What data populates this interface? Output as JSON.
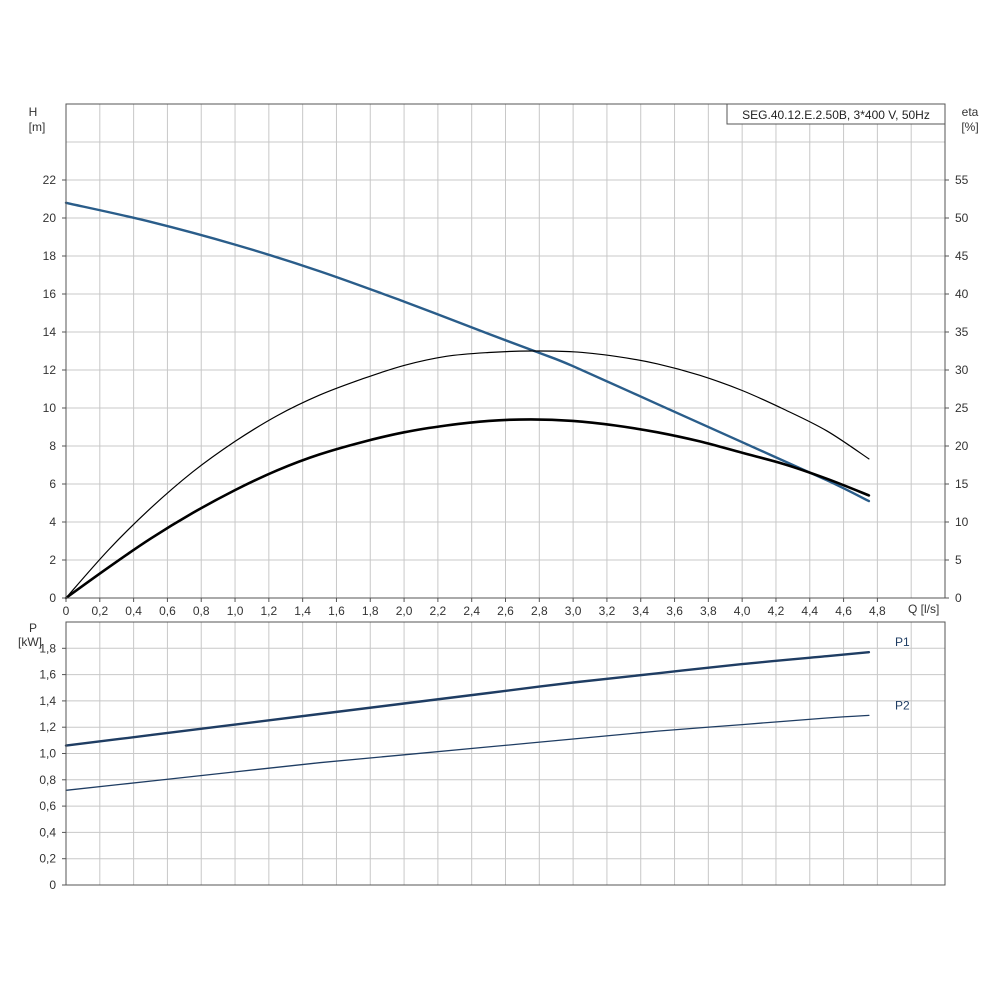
{
  "colors": {
    "grid": "#c8c8c8",
    "axis": "#555555",
    "head_curve": "#2a5d8a",
    "efficiency_curve": "#000000",
    "power_curve": "#1f3d63"
  },
  "chart_data": [
    {
      "type": "line",
      "model_label": "SEG.40.12.E.2.50B, 3*400 V, 50Hz",
      "xlabel": "Q [l/s]",
      "ylabel_left": "H",
      "ylabel_left_unit": "[m]",
      "ylabel_right": "eta",
      "ylabel_right_unit": "[%]",
      "xlim": [
        0,
        5.2
      ],
      "ylim_left": [
        0,
        26
      ],
      "ylim_right": [
        0,
        65
      ],
      "x_ticks": [
        {
          "v": 0,
          "label": "0"
        },
        {
          "v": 0.2,
          "label": "0,2"
        },
        {
          "v": 0.4,
          "label": "0,4"
        },
        {
          "v": 0.6,
          "label": "0,6"
        },
        {
          "v": 0.8,
          "label": "0,8"
        },
        {
          "v": 1.0,
          "label": "1,0"
        },
        {
          "v": 1.2,
          "label": "1,2"
        },
        {
          "v": 1.4,
          "label": "1,4"
        },
        {
          "v": 1.6,
          "label": "1,6"
        },
        {
          "v": 1.8,
          "label": "1,8"
        },
        {
          "v": 2.0,
          "label": "2,0"
        },
        {
          "v": 2.2,
          "label": "2,2"
        },
        {
          "v": 2.4,
          "label": "2,4"
        },
        {
          "v": 2.6,
          "label": "2,6"
        },
        {
          "v": 2.8,
          "label": "2,8"
        },
        {
          "v": 3.0,
          "label": "3,0"
        },
        {
          "v": 3.2,
          "label": "3,2"
        },
        {
          "v": 3.4,
          "label": "3,4"
        },
        {
          "v": 3.6,
          "label": "3,6"
        },
        {
          "v": 3.8,
          "label": "3,8"
        },
        {
          "v": 4.0,
          "label": "4,0"
        },
        {
          "v": 4.2,
          "label": "4,2"
        },
        {
          "v": 4.4,
          "label": "4,4"
        },
        {
          "v": 4.6,
          "label": "4,6"
        },
        {
          "v": 4.8,
          "label": "4,8"
        }
      ],
      "y_ticks_left": [
        {
          "v": 0,
          "label": "0"
        },
        {
          "v": 2,
          "label": "2"
        },
        {
          "v": 4,
          "label": "4"
        },
        {
          "v": 6,
          "label": "6"
        },
        {
          "v": 8,
          "label": "8"
        },
        {
          "v": 10,
          "label": "10"
        },
        {
          "v": 12,
          "label": "12"
        },
        {
          "v": 14,
          "label": "14"
        },
        {
          "v": 16,
          "label": "16"
        },
        {
          "v": 18,
          "label": "18"
        },
        {
          "v": 20,
          "label": "20"
        },
        {
          "v": 22,
          "label": "22"
        }
      ],
      "y_ticks_right": [
        {
          "v": 0,
          "label": "0"
        },
        {
          "v": 5,
          "label": "5"
        },
        {
          "v": 10,
          "label": "10"
        },
        {
          "v": 15,
          "label": "15"
        },
        {
          "v": 20,
          "label": "20"
        },
        {
          "v": 25,
          "label": "25"
        },
        {
          "v": 30,
          "label": "30"
        },
        {
          "v": 35,
          "label": "35"
        },
        {
          "v": 40,
          "label": "40"
        },
        {
          "v": 45,
          "label": "45"
        },
        {
          "v": 50,
          "label": "50"
        },
        {
          "v": 55,
          "label": "55"
        }
      ],
      "grid": true,
      "series": [
        {
          "axis": "left",
          "style": "head",
          "x": [
            0,
            0.5,
            1.0,
            1.5,
            2.0,
            2.5,
            2.8,
            3.0,
            3.5,
            4.0,
            4.5,
            4.75
          ],
          "y": [
            20.8,
            19.8,
            18.6,
            17.2,
            15.6,
            13.9,
            12.9,
            12.2,
            10.2,
            8.2,
            6.2,
            5.1
          ]
        },
        {
          "axis": "right",
          "style": "eta-thin",
          "x": [
            0,
            0.25,
            0.5,
            0.75,
            1.0,
            1.25,
            1.5,
            1.75,
            2.0,
            2.25,
            2.5,
            2.75,
            3.0,
            3.25,
            3.5,
            3.75,
            4.0,
            4.25,
            4.5,
            4.75
          ],
          "y": [
            0,
            6.3,
            11.8,
            16.6,
            20.6,
            24.0,
            26.7,
            28.8,
            30.6,
            31.8,
            32.3,
            32.5,
            32.4,
            31.8,
            30.8,
            29.3,
            27.3,
            24.8,
            22.0,
            18.3
          ]
        },
        {
          "axis": "right",
          "style": "eta-thick",
          "x": [
            0,
            0.25,
            0.5,
            0.75,
            1.0,
            1.25,
            1.5,
            1.75,
            2.0,
            2.25,
            2.5,
            2.75,
            3.0,
            3.25,
            3.5,
            3.75,
            4.0,
            4.25,
            4.5,
            4.75
          ],
          "y": [
            0,
            4.0,
            7.8,
            11.2,
            14.2,
            16.8,
            18.9,
            20.5,
            21.8,
            22.7,
            23.3,
            23.5,
            23.3,
            22.7,
            21.8,
            20.6,
            19.1,
            17.6,
            15.7,
            13.5
          ]
        }
      ]
    },
    {
      "type": "line",
      "ylabel": "P",
      "ylabel_unit": "[kW]",
      "xlim": [
        0,
        5.2
      ],
      "ylim": [
        0,
        2.0
      ],
      "y_ticks": [
        {
          "v": 0,
          "label": "0"
        },
        {
          "v": 0.2,
          "label": "0,2"
        },
        {
          "v": 0.4,
          "label": "0,4"
        },
        {
          "v": 0.6,
          "label": "0,6"
        },
        {
          "v": 0.8,
          "label": "0,8"
        },
        {
          "v": 1.0,
          "label": "1,0"
        },
        {
          "v": 1.2,
          "label": "1,2"
        },
        {
          "v": 1.4,
          "label": "1,4"
        },
        {
          "v": 1.6,
          "label": "1,6"
        },
        {
          "v": 1.8,
          "label": "1,8"
        }
      ],
      "grid": true,
      "series": [
        {
          "name": "P1",
          "style": "thick",
          "x": [
            0,
            0.5,
            1.0,
            1.5,
            2.0,
            2.5,
            3.0,
            3.5,
            4.0,
            4.5,
            4.75
          ],
          "y": [
            1.06,
            1.14,
            1.22,
            1.3,
            1.38,
            1.46,
            1.54,
            1.61,
            1.68,
            1.74,
            1.77
          ]
        },
        {
          "name": "P2",
          "style": "thin",
          "x": [
            0,
            0.5,
            1.0,
            1.5,
            2.0,
            2.5,
            3.0,
            3.5,
            4.0,
            4.5,
            4.75
          ],
          "y": [
            0.72,
            0.79,
            0.86,
            0.93,
            0.99,
            1.05,
            1.11,
            1.17,
            1.22,
            1.27,
            1.29
          ]
        }
      ]
    }
  ]
}
